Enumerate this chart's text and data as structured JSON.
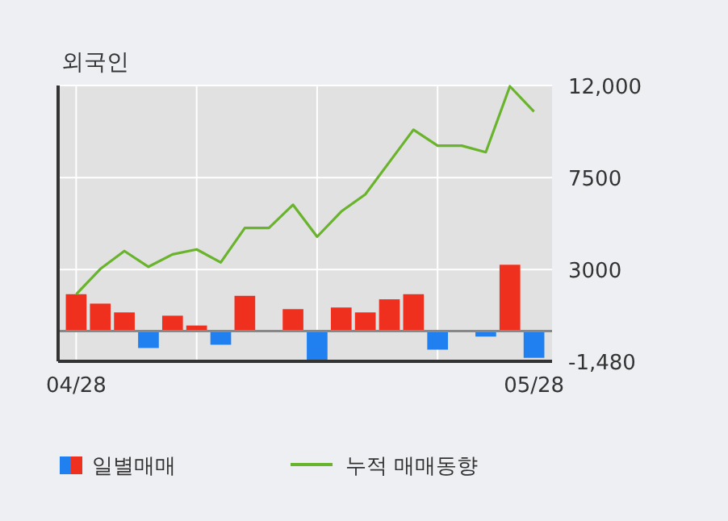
{
  "chart_data": {
    "type": "bar",
    "title": "외국인",
    "categories": [
      "04/28",
      null,
      null,
      null,
      null,
      null,
      null,
      null,
      null,
      null,
      null,
      null,
      null,
      null,
      null,
      null,
      null,
      null,
      null,
      "05/28"
    ],
    "series": [
      {
        "name": "일별매매",
        "colors": [
          "#f0301e",
          "#f0301e",
          "#f0301e",
          "#2080f0",
          "#f0301e",
          "#f0301e",
          "#2080f0",
          "#f0301e",
          "#f0301e",
          "#f0301e",
          "#2080f0",
          "#f0301e",
          "#f0301e",
          "#f0301e",
          "#f0301e",
          "#2080f0",
          "#f0301e",
          "#2080f0",
          "#f0301e",
          "#2080f0"
        ],
        "values": [
          1800,
          1340,
          910,
          -830,
          750,
          270,
          -670,
          1720,
          0,
          1070,
          -1470,
          1150,
          910,
          1550,
          1800,
          -910,
          0,
          -270,
          3240,
          -1310
        ]
      },
      {
        "name": "누적 매매동향",
        "type": "line",
        "color": "#6ab42d",
        "values": [
          1800,
          3030,
          3910,
          3140,
          3750,
          3990,
          3350,
          5040,
          5040,
          6170,
          4610,
          5840,
          6680,
          8260,
          9840,
          9060,
          9060,
          8740,
          11960,
          10720
        ]
      }
    ],
    "ylim": [
      -1480,
      12000
    ],
    "yticks": [
      {
        "value": -1480,
        "label": "-1,480"
      },
      3000,
      7500,
      {
        "value": 12000,
        "label": "12,000"
      }
    ],
    "grid": true,
    "legend": "bottom"
  }
}
